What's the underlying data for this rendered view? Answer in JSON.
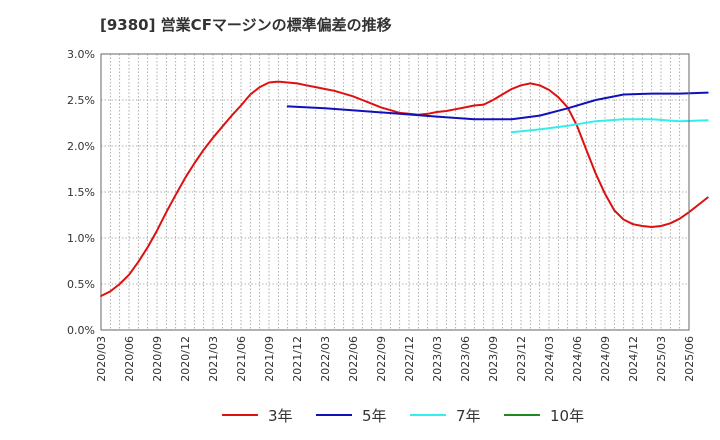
{
  "chart_data": {
    "type": "line",
    "title": "[9380]  営業CFマージンの標準偏差の推移",
    "xlabel": "",
    "ylabel": "",
    "ylim": [
      0,
      3.0
    ],
    "yticks": [
      "0.0%",
      "0.5%",
      "1.0%",
      "1.5%",
      "2.0%",
      "2.5%",
      "3.0%"
    ],
    "xticks": [
      "2020/03",
      "2020/06",
      "2020/09",
      "2020/12",
      "2021/03",
      "2021/06",
      "2021/09",
      "2021/12",
      "2022/03",
      "2022/06",
      "2022/09",
      "2022/12",
      "2023/03",
      "2023/06",
      "2023/09",
      "2023/12",
      "2024/03",
      "2024/06",
      "2024/09",
      "2024/12",
      "2025/03",
      "2025/06"
    ],
    "grid": true,
    "legend_position": "bottom",
    "series": [
      {
        "name": "3年",
        "color": "#dd1111",
        "points": [
          [
            "2020/03",
            0.37
          ],
          [
            "2020/04",
            0.42
          ],
          [
            "2020/05",
            0.5
          ],
          [
            "2020/06",
            0.6
          ],
          [
            "2020/07",
            0.74
          ],
          [
            "2020/08",
            0.9
          ],
          [
            "2020/09",
            1.08
          ],
          [
            "2020/10",
            1.28
          ],
          [
            "2020/11",
            1.47
          ],
          [
            "2020/12",
            1.65
          ],
          [
            "2021/01",
            1.81
          ],
          [
            "2021/02",
            1.96
          ],
          [
            "2021/03",
            2.09
          ],
          [
            "2021/04",
            2.21
          ],
          [
            "2021/05",
            2.33
          ],
          [
            "2021/06",
            2.44
          ],
          [
            "2021/07",
            2.56
          ],
          [
            "2021/08",
            2.64
          ],
          [
            "2021/09",
            2.69
          ],
          [
            "2021/10",
            2.7
          ],
          [
            "2021/11",
            2.69
          ],
          [
            "2021/12",
            2.68
          ],
          [
            "2022/01",
            2.66
          ],
          [
            "2022/02",
            2.64
          ],
          [
            "2022/03",
            2.62
          ],
          [
            "2022/04",
            2.6
          ],
          [
            "2022/05",
            2.57
          ],
          [
            "2022/06",
            2.54
          ],
          [
            "2022/07",
            2.5
          ],
          [
            "2022/08",
            2.46
          ],
          [
            "2022/09",
            2.42
          ],
          [
            "2022/10",
            2.39
          ],
          [
            "2022/11",
            2.36
          ],
          [
            "2022/12",
            2.35
          ],
          [
            "2023/01",
            2.34
          ],
          [
            "2023/02",
            2.35
          ],
          [
            "2023/03",
            2.37
          ],
          [
            "2023/04",
            2.38
          ],
          [
            "2023/05",
            2.4
          ],
          [
            "2023/06",
            2.42
          ],
          [
            "2023/07",
            2.44
          ],
          [
            "2023/08",
            2.45
          ],
          [
            "2023/09",
            2.5
          ],
          [
            "2023/10",
            2.56
          ],
          [
            "2023/11",
            2.62
          ],
          [
            "2023/12",
            2.66
          ],
          [
            "2024/01",
            2.68
          ],
          [
            "2024/02",
            2.66
          ],
          [
            "2024/03",
            2.61
          ],
          [
            "2024/04",
            2.53
          ],
          [
            "2024/05",
            2.42
          ],
          [
            "2024/06",
            2.22
          ],
          [
            "2024/07",
            1.96
          ],
          [
            "2024/08",
            1.7
          ],
          [
            "2024/09",
            1.48
          ],
          [
            "2024/10",
            1.3
          ],
          [
            "2024/11",
            1.2
          ],
          [
            "2024/12",
            1.15
          ],
          [
            "2025/01",
            1.13
          ],
          [
            "2025/02",
            1.12
          ],
          [
            "2025/03",
            1.13
          ],
          [
            "2025/04",
            1.16
          ],
          [
            "2025/05",
            1.21
          ],
          [
            "2025/06",
            1.28
          ],
          [
            "2025/07",
            1.36
          ],
          [
            "2025/08",
            1.44
          ]
        ]
      },
      {
        "name": "5年",
        "color": "#1111bb",
        "points": [
          [
            "2021/11",
            2.43
          ],
          [
            "2022/03",
            2.41
          ],
          [
            "2022/07",
            2.38
          ],
          [
            "2022/11",
            2.35
          ],
          [
            "2023/03",
            2.32
          ],
          [
            "2023/07",
            2.29
          ],
          [
            "2023/11",
            2.29
          ],
          [
            "2024/02",
            2.33
          ],
          [
            "2024/05",
            2.41
          ],
          [
            "2024/08",
            2.5
          ],
          [
            "2024/11",
            2.56
          ],
          [
            "2025/02",
            2.57
          ],
          [
            "2025/05",
            2.57
          ],
          [
            "2025/08",
            2.58
          ]
        ]
      },
      {
        "name": "7年",
        "color": "#33eeee",
        "points": [
          [
            "2023/11",
            2.15
          ],
          [
            "2024/02",
            2.18
          ],
          [
            "2024/05",
            2.22
          ],
          [
            "2024/08",
            2.27
          ],
          [
            "2024/11",
            2.29
          ],
          [
            "2025/02",
            2.29
          ],
          [
            "2025/05",
            2.27
          ],
          [
            "2025/08",
            2.28
          ]
        ]
      },
      {
        "name": "10年",
        "color": "#228822",
        "points": []
      }
    ]
  }
}
